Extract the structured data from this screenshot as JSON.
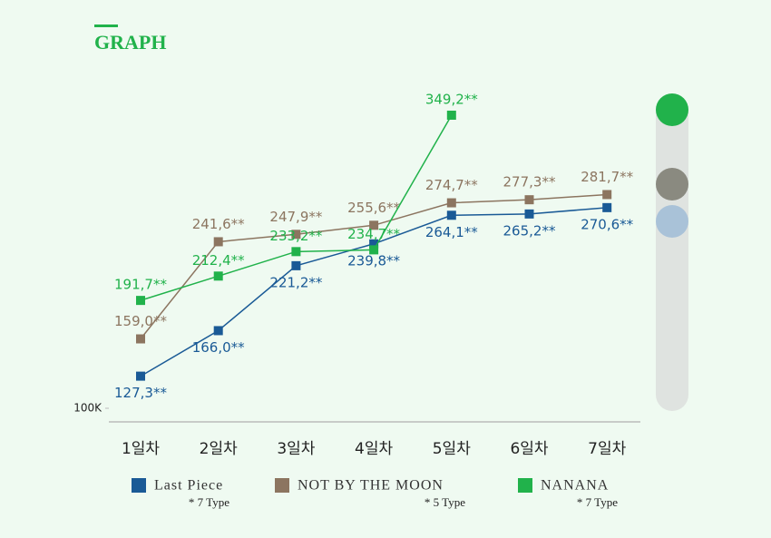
{
  "chart_data": {
    "type": "line",
    "title": "GRAPH",
    "categories": [
      "1일차",
      "2일차",
      "3일차",
      "4일차",
      "5일차",
      "6일차",
      "7일차"
    ],
    "series": [
      {
        "name": "Last Piece",
        "note": "* 7 Type",
        "color": "#1a5a96",
        "values": [
          127.3,
          166.0,
          221.2,
          239.8,
          264.1,
          265.2,
          270.6
        ],
        "value_labels": [
          "127,3**",
          "166,0**",
          "221,2**",
          "239,8**",
          "264,1**",
          "265,2**",
          "270,6**"
        ]
      },
      {
        "name": "NOT BY THE MOON",
        "note": "* 5 Type",
        "color": "#8c7560",
        "values": [
          159.0,
          241.6,
          247.9,
          255.6,
          274.7,
          277.3,
          281.7
        ],
        "value_labels": [
          "159,0**",
          "241,6**",
          "247,9**",
          "255,6**",
          "274,7**",
          "277,3**",
          "281,7**"
        ]
      },
      {
        "name": "NANANA",
        "note": "* 7 Type",
        "color": "#21b24b",
        "values": [
          191.7,
          212.4,
          233.2,
          234.7,
          349.2,
          null,
          null
        ],
        "value_labels": [
          "191,7**",
          "212,4**",
          "233,2**",
          "234,7**",
          "349,2**",
          null,
          null
        ]
      }
    ],
    "ylim": [
      100,
      370
    ],
    "yticks": [
      {
        "value": 100,
        "label": "100K"
      }
    ]
  }
}
